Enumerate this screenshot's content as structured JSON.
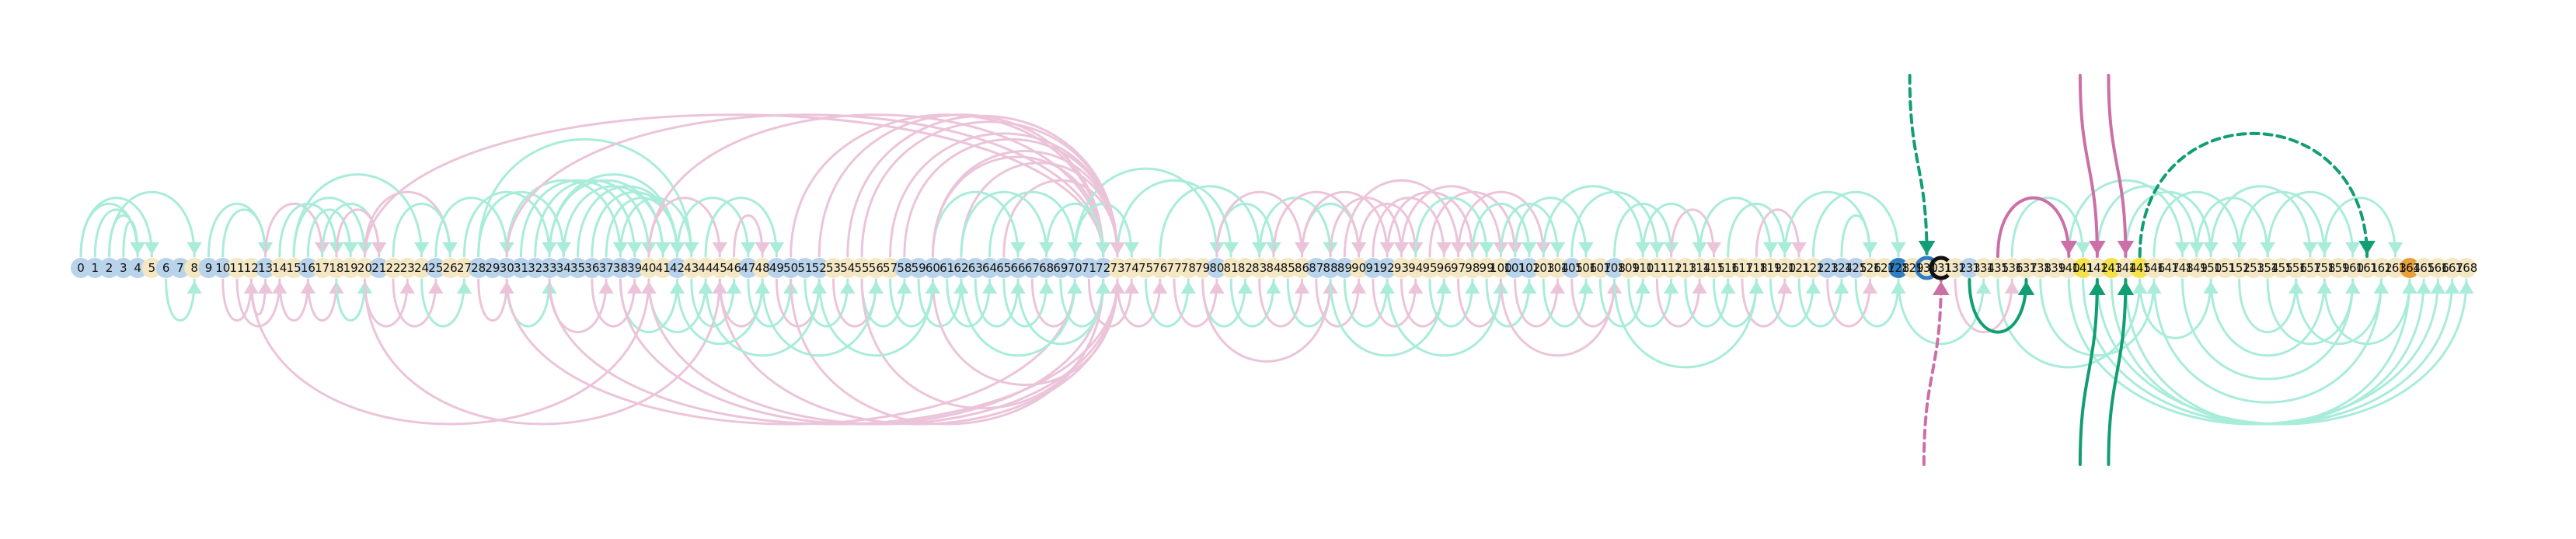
{
  "diagram": {
    "type": "arc-diagram",
    "node_count": 169,
    "node_labels": [
      "0",
      "1",
      "2",
      "3",
      "4",
      "5",
      "6",
      "7",
      "8",
      "9",
      "10",
      "11",
      "12",
      "13",
      "14",
      "15",
      "16",
      "17",
      "18",
      "19",
      "20",
      "21",
      "22",
      "23",
      "24",
      "25",
      "26",
      "27",
      "28",
      "29",
      "30",
      "31",
      "32",
      "33",
      "34",
      "35",
      "36",
      "37",
      "38",
      "39",
      "40",
      "41",
      "42",
      "43",
      "44",
      "45",
      "46",
      "47",
      "48",
      "49",
      "50",
      "51",
      "52",
      "53",
      "54",
      "55",
      "56",
      "57",
      "58",
      "59",
      "60",
      "61",
      "62",
      "63",
      "64",
      "65",
      "66",
      "67",
      "68",
      "69",
      "70",
      "71",
      "72",
      "73",
      "74",
      "75",
      "76",
      "77",
      "78",
      "79",
      "80",
      "81",
      "82",
      "83",
      "84",
      "85",
      "86",
      "87",
      "88",
      "89",
      "90",
      "91",
      "92",
      "93",
      "94",
      "95",
      "96",
      "97",
      "98",
      "99",
      "100",
      "101",
      "102",
      "103",
      "104",
      "105",
      "106",
      "107",
      "108",
      "109",
      "110",
      "111",
      "112",
      "113",
      "114",
      "115",
      "116",
      "117",
      "118",
      "119",
      "120",
      "121",
      "122",
      "123",
      "124",
      "125",
      "126",
      "127",
      "128",
      "129",
      "130",
      "131",
      "132",
      "133",
      "134",
      "135",
      "136",
      "137",
      "138",
      "139",
      "140",
      "141",
      "142",
      "143",
      "144",
      "145",
      "146",
      "147",
      "148",
      "149",
      "150",
      "151",
      "152",
      "153",
      "154",
      "155",
      "156",
      "157",
      "158",
      "159",
      "160",
      "161",
      "162",
      "163",
      "164",
      "165",
      "166",
      "167",
      "168"
    ],
    "node_colors": [
      "#b9d3ea",
      "#b9d3ea",
      "#b9d3ea",
      "#b9d3ea",
      "#b9d3ea",
      "#f4e7c4",
      "#b9d3ea",
      "#b9d3ea",
      "#f4e7c4",
      "#b9d3ea",
      "#b9d3ea",
      "#f4e7c4",
      "#f4e7c4",
      "#b9d3ea",
      "#f4e7c4",
      "#f4e7c4",
      "#b9d3ea",
      "#f4e7c4",
      "#f4e7c4",
      "#f4e7c4",
      "#f4e7c4",
      "#b9d3ea",
      "#f4e7c4",
      "#f4e7c4",
      "#f4e7c4",
      "#b9d3ea",
      "#f4e7c4",
      "#f4e7c4",
      "#b9d3ea",
      "#b9d3ea",
      "#b9d3ea",
      "#b9d3ea",
      "#b9d3ea",
      "#b9d3ea",
      "#b9d3ea",
      "#b9d3ea",
      "#b9d3ea",
      "#b9d3ea",
      "#b9d3ea",
      "#b9d3ea",
      "#f4e7c4",
      "#f4e7c4",
      "#b9d3ea",
      "#f4e7c4",
      "#f4e7c4",
      "#f4e7c4",
      "#f4e7c4",
      "#b9d3ea",
      "#f4e7c4",
      "#b9d3ea",
      "#b9d3ea",
      "#b9d3ea",
      "#b9d3ea",
      "#f4e7c4",
      "#f4e7c4",
      "#f4e7c4",
      "#f4e7c4",
      "#f4e7c4",
      "#b9d3ea",
      "#b9d3ea",
      "#b9d3ea",
      "#b9d3ea",
      "#b9d3ea",
      "#b9d3ea",
      "#b9d3ea",
      "#b9d3ea",
      "#b9d3ea",
      "#b9d3ea",
      "#b9d3ea",
      "#b9d3ea",
      "#b9d3ea",
      "#b9d3ea",
      "#b9d3ea",
      "#f4e7c4",
      "#f4e7c4",
      "#f4e7c4",
      "#f4e7c4",
      "#f4e7c4",
      "#f4e7c4",
      "#f4e7c4",
      "#b9d3ea",
      "#f4e7c4",
      "#f4e7c4",
      "#f4e7c4",
      "#f4e7c4",
      "#f4e7c4",
      "#f4e7c4",
      "#b9d3ea",
      "#b9d3ea",
      "#b9d3ea",
      "#f4e7c4",
      "#b9d3ea",
      "#b9d3ea",
      "#f4e7c4",
      "#f4e7c4",
      "#f4e7c4",
      "#f4e7c4",
      "#f4e7c4",
      "#f4e7c4",
      "#f4e7c4",
      "#f4e7c4",
      "#b9d3ea",
      "#b9d3ea",
      "#f4e7c4",
      "#f4e7c4",
      "#b9d3ea",
      "#f4e7c4",
      "#f4e7c4",
      "#b9d3ea",
      "#f4e7c4",
      "#f4e7c4",
      "#f4e7c4",
      "#f4e7c4",
      "#f4e7c4",
      "#f4e7c4",
      "#f4e7c4",
      "#f4e7c4",
      "#f4e7c4",
      "#f4e7c4",
      "#f4e7c4",
      "#f4e7c4",
      "#f4e7c4",
      "#f4e7c4",
      "#b9d3ea",
      "#b9d3ea",
      "#b9d3ea",
      "#f4e7c4",
      "#f4e7c4",
      "#2f7ec2",
      "#f4e7c4",
      "#f4e7c4",
      "#f4e7c4",
      "#f4e7c4",
      "#b9d3ea",
      "#f4e7c4",
      "#f4e7c4",
      "#f4e7c4",
      "#f4e7c4",
      "#f4e7c4",
      "#f4e7c4",
      "#f4e7c4",
      "#f5e14a",
      "#f4e7c4",
      "#f5e14a",
      "#f4e7c4",
      "#f5e14a",
      "#f4e7c4",
      "#f4e7c4",
      "#f4e7c4",
      "#f4e7c4",
      "#f4e7c4",
      "#f4e7c4",
      "#f4e7c4",
      "#f4e7c4",
      "#f4e7c4",
      "#f4e7c4",
      "#f4e7c4",
      "#f4e7c4",
      "#f4e7c4",
      "#f4e7c4",
      "#f4e7c4",
      "#f4e7c4",
      "#f4e7c4",
      "#f4e7c4",
      "#e8a13a",
      "#f4e7c4",
      "#f4e7c4",
      "#f4e7c4",
      "#f4e7c4",
      "#f4e7c4",
      "#f4e7c4",
      "#f4e7c4"
    ],
    "highlighted_nodes": [
      130,
      131
    ],
    "colors": {
      "green_faint": "#a8ecd9",
      "pink_faint": "#ecc4da",
      "green_strong": "#119e74",
      "pink_strong": "#cc6fa7",
      "ring_black": "#111111",
      "ring_blue": "#2f7ec2"
    },
    "edges_faint_top": [
      [
        0,
        4,
        "green"
      ],
      [
        1,
        4,
        "green"
      ],
      [
        2,
        4,
        "green"
      ],
      [
        3,
        4,
        "green"
      ],
      [
        0,
        5,
        "green"
      ],
      [
        2,
        8,
        "green"
      ],
      [
        9,
        13,
        "green"
      ],
      [
        10,
        13,
        "green"
      ],
      [
        13,
        17,
        "pink"
      ],
      [
        14,
        18,
        "green"
      ],
      [
        15,
        20,
        "green"
      ],
      [
        16,
        19,
        "green"
      ],
      [
        17,
        21,
        "green"
      ],
      [
        18,
        21,
        "pink"
      ],
      [
        15,
        24,
        "green"
      ],
      [
        20,
        26,
        "pink"
      ],
      [
        22,
        26,
        "green"
      ],
      [
        25,
        30,
        "green"
      ],
      [
        27,
        33,
        "green"
      ],
      [
        28,
        34,
        "green"
      ],
      [
        30,
        38,
        "green"
      ],
      [
        31,
        39,
        "green"
      ],
      [
        32,
        40,
        "green"
      ],
      [
        33,
        41,
        "green"
      ],
      [
        34,
        41,
        "green"
      ],
      [
        35,
        42,
        "green"
      ],
      [
        36,
        42,
        "green"
      ],
      [
        37,
        42,
        "green"
      ],
      [
        33,
        42,
        "green"
      ],
      [
        38,
        43,
        "green"
      ],
      [
        28,
        43,
        "green"
      ],
      [
        40,
        45,
        "pink"
      ],
      [
        42,
        47,
        "green"
      ],
      [
        44,
        49,
        "green"
      ],
      [
        46,
        48,
        "pink"
      ],
      [
        20,
        72,
        "pink"
      ],
      [
        30,
        72,
        "pink"
      ],
      [
        40,
        72,
        "pink"
      ],
      [
        50,
        72,
        "pink"
      ],
      [
        52,
        72,
        "pink"
      ],
      [
        55,
        73,
        "pink"
      ],
      [
        58,
        73,
        "pink"
      ],
      [
        60,
        72,
        "pink"
      ],
      [
        62,
        73,
        "pink"
      ],
      [
        65,
        73,
        "pink"
      ],
      [
        68,
        72,
        "green"
      ],
      [
        70,
        74,
        "green"
      ],
      [
        60,
        66,
        "green"
      ],
      [
        62,
        68,
        "green"
      ],
      [
        64,
        70,
        "green"
      ],
      [
        70,
        80,
        "green"
      ],
      [
        73,
        81,
        "green"
      ],
      [
        76,
        83,
        "green"
      ],
      [
        80,
        84,
        "green"
      ],
      [
        83,
        88,
        "green"
      ],
      [
        86,
        90,
        "green"
      ],
      [
        88,
        93,
        "pink"
      ],
      [
        90,
        94,
        "pink"
      ],
      [
        91,
        96,
        "pink"
      ],
      [
        92,
        98,
        "pink"
      ],
      [
        93,
        100,
        "pink"
      ],
      [
        95,
        101,
        "pink"
      ],
      [
        97,
        103,
        "pink"
      ],
      [
        100,
        104,
        "green"
      ],
      [
        101,
        106,
        "green"
      ],
      [
        103,
        110,
        "green"
      ],
      [
        105,
        111,
        "green"
      ],
      [
        108,
        112,
        "green"
      ],
      [
        110,
        114,
        "green"
      ],
      [
        112,
        115,
        "pink"
      ],
      [
        114,
        119,
        "green"
      ],
      [
        116,
        120,
        "green"
      ],
      [
        118,
        121,
        "pink"
      ],
      [
        120,
        126,
        "green"
      ],
      [
        122,
        128,
        "green"
      ],
      [
        124,
        126,
        "green"
      ],
      [
        136,
        141,
        "green"
      ],
      [
        140,
        148,
        "green"
      ],
      [
        142,
        149,
        "green"
      ],
      [
        144,
        150,
        "green"
      ],
      [
        146,
        152,
        "green"
      ],
      [
        149,
        154,
        "green"
      ],
      [
        150,
        157,
        "green"
      ],
      [
        152,
        158,
        "green"
      ],
      [
        154,
        160,
        "green"
      ],
      [
        158,
        163,
        "green"
      ],
      [
        135,
        140,
        "pink"
      ],
      [
        80,
        86,
        "pink"
      ],
      [
        60,
        73,
        "pink"
      ],
      [
        57,
        73,
        "pink"
      ],
      [
        54,
        73,
        "pink"
      ],
      [
        84,
        90,
        "pink"
      ],
      [
        86,
        92,
        "pink"
      ],
      [
        89,
        97,
        "pink"
      ],
      [
        94,
        99,
        "green"
      ],
      [
        98,
        102,
        "green"
      ]
    ],
    "edges_faint_bottom": [
      [
        6,
        8,
        "green"
      ],
      [
        10,
        12,
        "pink"
      ],
      [
        11,
        14,
        "pink"
      ],
      [
        12,
        13,
        "pink"
      ],
      [
        14,
        16,
        "pink"
      ],
      [
        16,
        18,
        "pink"
      ],
      [
        18,
        20,
        "green"
      ],
      [
        20,
        23,
        "pink"
      ],
      [
        22,
        25,
        "pink"
      ],
      [
        24,
        27,
        "green"
      ],
      [
        28,
        30,
        "pink"
      ],
      [
        30,
        33,
        "green"
      ],
      [
        33,
        37,
        "pink"
      ],
      [
        36,
        39,
        "pink"
      ],
      [
        38,
        42,
        "green"
      ],
      [
        40,
        44,
        "green"
      ],
      [
        43,
        46,
        "green"
      ],
      [
        45,
        48,
        "pink"
      ],
      [
        47,
        50,
        "green"
      ],
      [
        49,
        52,
        "pink"
      ],
      [
        51,
        54,
        "green"
      ],
      [
        53,
        56,
        "pink"
      ],
      [
        55,
        58,
        "green"
      ],
      [
        57,
        60,
        "green"
      ],
      [
        59,
        62,
        "green"
      ],
      [
        61,
        64,
        "green"
      ],
      [
        63,
        66,
        "green"
      ],
      [
        65,
        68,
        "green"
      ],
      [
        67,
        70,
        "pink"
      ],
      [
        69,
        72,
        "green"
      ],
      [
        71,
        74,
        "pink"
      ],
      [
        73,
        76,
        "pink"
      ],
      [
        75,
        78,
        "green"
      ],
      [
        77,
        80,
        "pink"
      ],
      [
        79,
        82,
        "green"
      ],
      [
        81,
        84,
        "green"
      ],
      [
        83,
        86,
        "pink"
      ],
      [
        85,
        88,
        "green"
      ],
      [
        87,
        90,
        "pink"
      ],
      [
        89,
        92,
        "green"
      ],
      [
        91,
        94,
        "pink"
      ],
      [
        93,
        96,
        "pink"
      ],
      [
        95,
        98,
        "green"
      ],
      [
        97,
        100,
        "pink"
      ],
      [
        99,
        102,
        "green"
      ],
      [
        101,
        104,
        "pink"
      ],
      [
        103,
        106,
        "green"
      ],
      [
        105,
        108,
        "pink"
      ],
      [
        107,
        110,
        "green"
      ],
      [
        109,
        112,
        "green"
      ],
      [
        111,
        114,
        "pink"
      ],
      [
        113,
        116,
        "green"
      ],
      [
        115,
        118,
        "green"
      ],
      [
        117,
        120,
        "pink"
      ],
      [
        119,
        122,
        "green"
      ],
      [
        121,
        124,
        "green"
      ],
      [
        123,
        126,
        "pink"
      ],
      [
        125,
        128,
        "green"
      ],
      [
        12,
        40,
        "pink"
      ],
      [
        20,
        45,
        "pink"
      ],
      [
        30,
        70,
        "pink"
      ],
      [
        38,
        72,
        "pink"
      ],
      [
        45,
        73,
        "pink"
      ],
      [
        50,
        72,
        "pink"
      ],
      [
        55,
        72,
        "pink"
      ],
      [
        60,
        73,
        "pink"
      ],
      [
        40,
        73,
        "pink"
      ],
      [
        33,
        73,
        "pink"
      ],
      [
        42,
        48,
        "green"
      ],
      [
        44,
        52,
        "green"
      ],
      [
        48,
        56,
        "green"
      ],
      [
        52,
        60,
        "green"
      ],
      [
        62,
        70,
        "green"
      ],
      [
        66,
        72,
        "green"
      ],
      [
        79,
        88,
        "pink"
      ],
      [
        88,
        96,
        "green"
      ],
      [
        92,
        100,
        "green"
      ],
      [
        100,
        108,
        "pink"
      ],
      [
        108,
        118,
        "green"
      ],
      [
        140,
        166,
        "green"
      ],
      [
        141,
        167,
        "green"
      ],
      [
        142,
        168,
        "green"
      ],
      [
        143,
        165,
        "green"
      ],
      [
        144,
        164,
        "green"
      ],
      [
        146,
        162,
        "green"
      ],
      [
        148,
        160,
        "green"
      ],
      [
        150,
        158,
        "green"
      ],
      [
        135,
        145,
        "green"
      ],
      [
        138,
        146,
        "green"
      ],
      [
        145,
        150,
        "green"
      ],
      [
        152,
        156,
        "green"
      ],
      [
        154,
        160,
        "green"
      ],
      [
        156,
        162,
        "green"
      ],
      [
        158,
        164,
        "green"
      ],
      [
        132,
        136,
        "pink"
      ],
      [
        128,
        134,
        "green"
      ]
    ],
    "edges_strong": [
      {
        "from": 130,
        "to": 130,
        "side": "top",
        "color": "green",
        "dash": true,
        "arrow": "down"
      },
      {
        "from": 131,
        "to": 131,
        "side": "bottom",
        "color": "pink",
        "dash": true,
        "arrow": "up"
      },
      {
        "from": 135,
        "to": 140,
        "side": "top",
        "color": "pink",
        "dash": false,
        "arrow": "down"
      },
      {
        "from": 133,
        "to": 137,
        "side": "bottom",
        "color": "green",
        "dash": false,
        "arrow": "up"
      },
      {
        "from": 142,
        "to": 142,
        "side": "top",
        "color": "pink",
        "dash": false,
        "arrow": "down"
      },
      {
        "from": 144,
        "to": 144,
        "side": "top",
        "color": "pink",
        "dash": false,
        "arrow": "down"
      },
      {
        "from": 142,
        "to": 142,
        "side": "bottom",
        "color": "green",
        "dash": false,
        "arrow": "up"
      },
      {
        "from": 144,
        "to": 144,
        "side": "bottom",
        "color": "green",
        "dash": false,
        "arrow": "up"
      },
      {
        "from": 145,
        "to": 161,
        "side": "top",
        "color": "green",
        "dash": true,
        "arrow": "down"
      }
    ]
  }
}
